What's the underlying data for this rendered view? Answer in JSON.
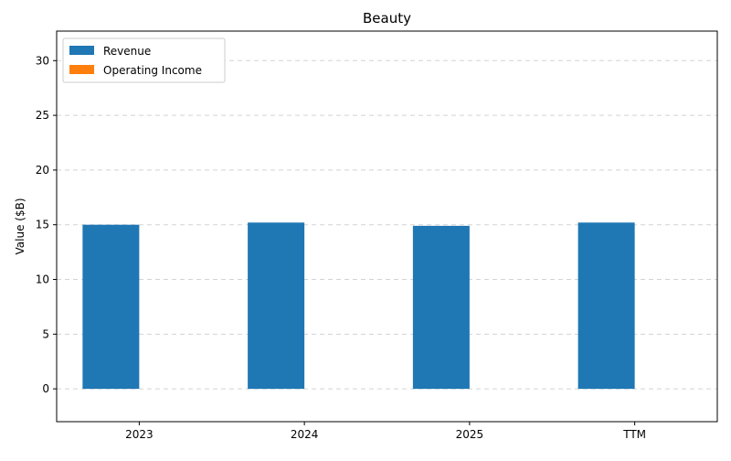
{
  "chart_data": {
    "type": "bar",
    "title": "Beauty",
    "xlabel": "",
    "ylabel": "Value ($B)",
    "categories": [
      "2023",
      "2024",
      "2025",
      "TTM"
    ],
    "series": [
      {
        "name": "Revenue",
        "values": [
          15.0,
          15.2,
          14.9,
          15.2
        ],
        "color": "#1f77b4"
      },
      {
        "name": "Operating Income",
        "values": [
          0,
          0,
          0,
          0
        ],
        "color": "#ff7f0e"
      }
    ],
    "ylim": [
      -3,
      32.7
    ],
    "yticks": [
      0,
      5,
      10,
      15,
      20,
      25,
      30
    ],
    "grid": "y-dashed",
    "legend_position": "top-left"
  }
}
